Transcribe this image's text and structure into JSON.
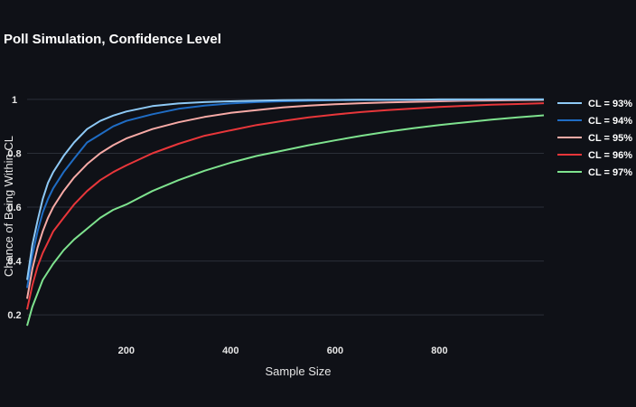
{
  "chart_data": {
    "type": "line",
    "title": "Poll Simulation, Confidence Level",
    "xlabel": "Sample Size",
    "ylabel": "Chance of Being Within CL",
    "xlim": [
      10,
      1000
    ],
    "ylim": [
      0.12,
      1.05
    ],
    "x_ticks": [
      200,
      400,
      600,
      800
    ],
    "y_ticks": [
      0.2,
      0.4,
      0.6,
      0.8,
      1
    ],
    "x_tick_labels": [
      "200",
      "400",
      "600",
      "800"
    ],
    "y_tick_labels": [
      "0.2",
      "0.4",
      "0.6",
      "0.8",
      "1"
    ],
    "grid": "horizontal",
    "legend_position": "right",
    "x": [
      10,
      20,
      30,
      40,
      50,
      60,
      80,
      100,
      125,
      150,
      175,
      200,
      250,
      300,
      350,
      400,
      450,
      500,
      550,
      600,
      650,
      700,
      750,
      800,
      850,
      900,
      950,
      1000
    ],
    "series": [
      {
        "name": "CL = 93%",
        "color": "#8ec9f5",
        "values": [
          0.33,
          0.46,
          0.55,
          0.63,
          0.69,
          0.73,
          0.79,
          0.84,
          0.89,
          0.92,
          0.94,
          0.955,
          0.975,
          0.985,
          0.99,
          0.993,
          0.995,
          0.997,
          0.998,
          0.998,
          0.999,
          0.999,
          0.999,
          1.0,
          1.0,
          1.0,
          1.0,
          1.0
        ]
      },
      {
        "name": "CL = 94%",
        "color": "#1f6cc4",
        "values": [
          0.3,
          0.42,
          0.51,
          0.58,
          0.63,
          0.67,
          0.73,
          0.78,
          0.84,
          0.87,
          0.9,
          0.92,
          0.945,
          0.965,
          0.977,
          0.985,
          0.99,
          0.993,
          0.995,
          0.997,
          0.998,
          0.998,
          0.999,
          0.999,
          0.999,
          1.0,
          1.0,
          1.0
        ]
      },
      {
        "name": "CL = 95%",
        "color": "#f7aaa6",
        "values": [
          0.26,
          0.37,
          0.45,
          0.51,
          0.56,
          0.6,
          0.66,
          0.71,
          0.76,
          0.8,
          0.83,
          0.855,
          0.89,
          0.915,
          0.935,
          0.95,
          0.96,
          0.97,
          0.977,
          0.982,
          0.986,
          0.989,
          0.991,
          0.993,
          0.995,
          0.996,
          0.997,
          0.998
        ]
      },
      {
        "name": "CL = 96%",
        "color": "#e8363a",
        "values": [
          0.22,
          0.31,
          0.38,
          0.43,
          0.47,
          0.51,
          0.56,
          0.61,
          0.66,
          0.7,
          0.73,
          0.755,
          0.8,
          0.835,
          0.865,
          0.885,
          0.905,
          0.92,
          0.933,
          0.944,
          0.953,
          0.96,
          0.966,
          0.972,
          0.976,
          0.98,
          0.983,
          0.986
        ]
      },
      {
        "name": "CL = 97%",
        "color": "#7ee28e",
        "values": [
          0.16,
          0.23,
          0.28,
          0.33,
          0.36,
          0.39,
          0.44,
          0.48,
          0.52,
          0.56,
          0.59,
          0.61,
          0.66,
          0.7,
          0.735,
          0.765,
          0.79,
          0.81,
          0.83,
          0.848,
          0.865,
          0.88,
          0.893,
          0.905,
          0.915,
          0.925,
          0.933,
          0.941
        ]
      }
    ]
  }
}
